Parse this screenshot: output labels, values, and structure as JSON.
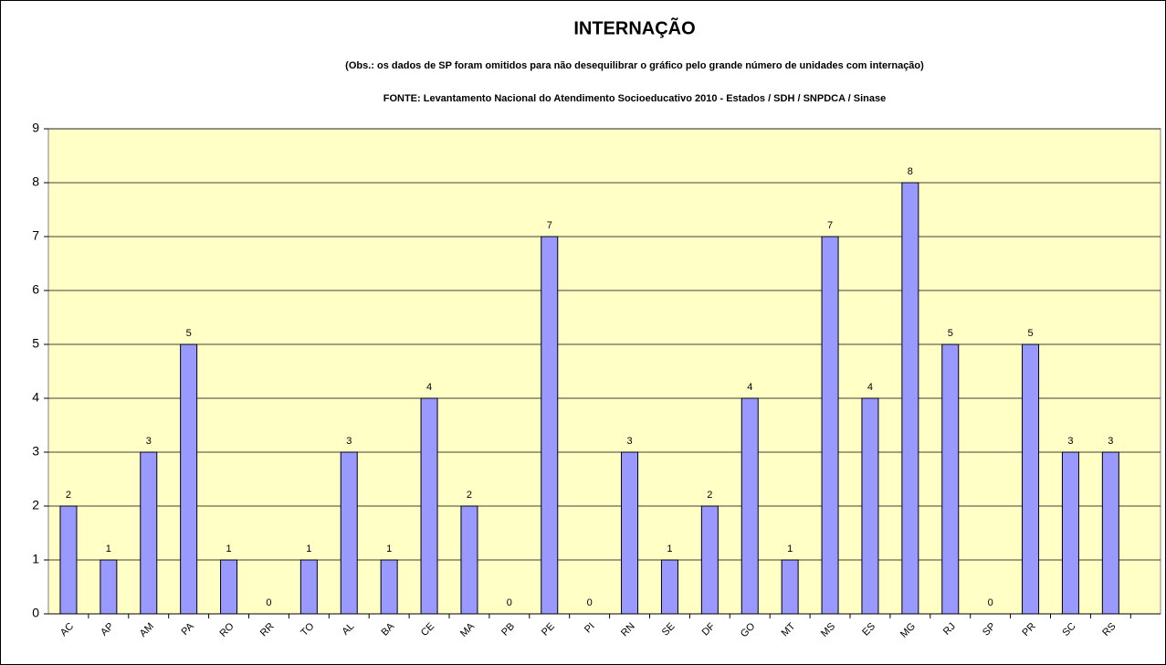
{
  "chart_data": {
    "type": "bar",
    "title": "INTERNAÇÃO",
    "subtitle": "(Obs.:  os dados de  SP foram omitidos para não desequilibrar o gráfico pelo grande número de unidades com internação)",
    "source": "FONTE:  Levantamento Nacional do Atendimento Socioeducativo 2010 - Estados / SDH / SNPDCA / Sinase",
    "categories": [
      "AC",
      "AP",
      "AM",
      "PA",
      "RO",
      "RR",
      "TO",
      "AL",
      "BA",
      "CE",
      "MA",
      "PB",
      "PE",
      "PI",
      "RN",
      "SE",
      "DF",
      "GO",
      "MT",
      "MS",
      "ES",
      "MG",
      "RJ",
      "SP",
      "PR",
      "SC",
      "RS"
    ],
    "values": [
      2,
      1,
      3,
      5,
      1,
      0,
      1,
      3,
      1,
      4,
      2,
      0,
      7,
      0,
      3,
      1,
      2,
      4,
      1,
      7,
      4,
      8,
      5,
      0,
      5,
      3,
      3
    ],
    "color": "#9999ff",
    "ylim": [
      0,
      9
    ],
    "yticks": [
      0,
      1,
      2,
      3,
      4,
      5,
      6,
      7,
      8,
      9
    ],
    "grid": true
  }
}
